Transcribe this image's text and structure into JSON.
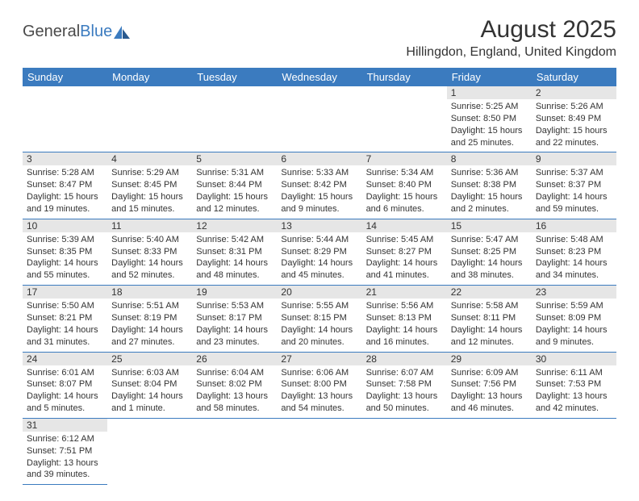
{
  "logo": {
    "general": "General",
    "blue": "Blue"
  },
  "title": "August 2025",
  "location": "Hillingdon, England, United Kingdom",
  "colors": {
    "header_bg": "#3b7bbf",
    "header_fg": "#ffffff",
    "daynum_bg": "#e6e6e6",
    "border": "#3b7bbf"
  },
  "day_headers": [
    "Sunday",
    "Monday",
    "Tuesday",
    "Wednesday",
    "Thursday",
    "Friday",
    "Saturday"
  ],
  "weeks": [
    [
      null,
      null,
      null,
      null,
      null,
      {
        "n": "1",
        "sr": "Sunrise: 5:25 AM",
        "ss": "Sunset: 8:50 PM",
        "dl1": "Daylight: 15 hours",
        "dl2": "and 25 minutes."
      },
      {
        "n": "2",
        "sr": "Sunrise: 5:26 AM",
        "ss": "Sunset: 8:49 PM",
        "dl1": "Daylight: 15 hours",
        "dl2": "and 22 minutes."
      }
    ],
    [
      {
        "n": "3",
        "sr": "Sunrise: 5:28 AM",
        "ss": "Sunset: 8:47 PM",
        "dl1": "Daylight: 15 hours",
        "dl2": "and 19 minutes."
      },
      {
        "n": "4",
        "sr": "Sunrise: 5:29 AM",
        "ss": "Sunset: 8:45 PM",
        "dl1": "Daylight: 15 hours",
        "dl2": "and 15 minutes."
      },
      {
        "n": "5",
        "sr": "Sunrise: 5:31 AM",
        "ss": "Sunset: 8:44 PM",
        "dl1": "Daylight: 15 hours",
        "dl2": "and 12 minutes."
      },
      {
        "n": "6",
        "sr": "Sunrise: 5:33 AM",
        "ss": "Sunset: 8:42 PM",
        "dl1": "Daylight: 15 hours",
        "dl2": "and 9 minutes."
      },
      {
        "n": "7",
        "sr": "Sunrise: 5:34 AM",
        "ss": "Sunset: 8:40 PM",
        "dl1": "Daylight: 15 hours",
        "dl2": "and 6 minutes."
      },
      {
        "n": "8",
        "sr": "Sunrise: 5:36 AM",
        "ss": "Sunset: 8:38 PM",
        "dl1": "Daylight: 15 hours",
        "dl2": "and 2 minutes."
      },
      {
        "n": "9",
        "sr": "Sunrise: 5:37 AM",
        "ss": "Sunset: 8:37 PM",
        "dl1": "Daylight: 14 hours",
        "dl2": "and 59 minutes."
      }
    ],
    [
      {
        "n": "10",
        "sr": "Sunrise: 5:39 AM",
        "ss": "Sunset: 8:35 PM",
        "dl1": "Daylight: 14 hours",
        "dl2": "and 55 minutes."
      },
      {
        "n": "11",
        "sr": "Sunrise: 5:40 AM",
        "ss": "Sunset: 8:33 PM",
        "dl1": "Daylight: 14 hours",
        "dl2": "and 52 minutes."
      },
      {
        "n": "12",
        "sr": "Sunrise: 5:42 AM",
        "ss": "Sunset: 8:31 PM",
        "dl1": "Daylight: 14 hours",
        "dl2": "and 48 minutes."
      },
      {
        "n": "13",
        "sr": "Sunrise: 5:44 AM",
        "ss": "Sunset: 8:29 PM",
        "dl1": "Daylight: 14 hours",
        "dl2": "and 45 minutes."
      },
      {
        "n": "14",
        "sr": "Sunrise: 5:45 AM",
        "ss": "Sunset: 8:27 PM",
        "dl1": "Daylight: 14 hours",
        "dl2": "and 41 minutes."
      },
      {
        "n": "15",
        "sr": "Sunrise: 5:47 AM",
        "ss": "Sunset: 8:25 PM",
        "dl1": "Daylight: 14 hours",
        "dl2": "and 38 minutes."
      },
      {
        "n": "16",
        "sr": "Sunrise: 5:48 AM",
        "ss": "Sunset: 8:23 PM",
        "dl1": "Daylight: 14 hours",
        "dl2": "and 34 minutes."
      }
    ],
    [
      {
        "n": "17",
        "sr": "Sunrise: 5:50 AM",
        "ss": "Sunset: 8:21 PM",
        "dl1": "Daylight: 14 hours",
        "dl2": "and 31 minutes."
      },
      {
        "n": "18",
        "sr": "Sunrise: 5:51 AM",
        "ss": "Sunset: 8:19 PM",
        "dl1": "Daylight: 14 hours",
        "dl2": "and 27 minutes."
      },
      {
        "n": "19",
        "sr": "Sunrise: 5:53 AM",
        "ss": "Sunset: 8:17 PM",
        "dl1": "Daylight: 14 hours",
        "dl2": "and 23 minutes."
      },
      {
        "n": "20",
        "sr": "Sunrise: 5:55 AM",
        "ss": "Sunset: 8:15 PM",
        "dl1": "Daylight: 14 hours",
        "dl2": "and 20 minutes."
      },
      {
        "n": "21",
        "sr": "Sunrise: 5:56 AM",
        "ss": "Sunset: 8:13 PM",
        "dl1": "Daylight: 14 hours",
        "dl2": "and 16 minutes."
      },
      {
        "n": "22",
        "sr": "Sunrise: 5:58 AM",
        "ss": "Sunset: 8:11 PM",
        "dl1": "Daylight: 14 hours",
        "dl2": "and 12 minutes."
      },
      {
        "n": "23",
        "sr": "Sunrise: 5:59 AM",
        "ss": "Sunset: 8:09 PM",
        "dl1": "Daylight: 14 hours",
        "dl2": "and 9 minutes."
      }
    ],
    [
      {
        "n": "24",
        "sr": "Sunrise: 6:01 AM",
        "ss": "Sunset: 8:07 PM",
        "dl1": "Daylight: 14 hours",
        "dl2": "and 5 minutes."
      },
      {
        "n": "25",
        "sr": "Sunrise: 6:03 AM",
        "ss": "Sunset: 8:04 PM",
        "dl1": "Daylight: 14 hours",
        "dl2": "and 1 minute."
      },
      {
        "n": "26",
        "sr": "Sunrise: 6:04 AM",
        "ss": "Sunset: 8:02 PM",
        "dl1": "Daylight: 13 hours",
        "dl2": "and 58 minutes."
      },
      {
        "n": "27",
        "sr": "Sunrise: 6:06 AM",
        "ss": "Sunset: 8:00 PM",
        "dl1": "Daylight: 13 hours",
        "dl2": "and 54 minutes."
      },
      {
        "n": "28",
        "sr": "Sunrise: 6:07 AM",
        "ss": "Sunset: 7:58 PM",
        "dl1": "Daylight: 13 hours",
        "dl2": "and 50 minutes."
      },
      {
        "n": "29",
        "sr": "Sunrise: 6:09 AM",
        "ss": "Sunset: 7:56 PM",
        "dl1": "Daylight: 13 hours",
        "dl2": "and 46 minutes."
      },
      {
        "n": "30",
        "sr": "Sunrise: 6:11 AM",
        "ss": "Sunset: 7:53 PM",
        "dl1": "Daylight: 13 hours",
        "dl2": "and 42 minutes."
      }
    ],
    [
      {
        "n": "31",
        "sr": "Sunrise: 6:12 AM",
        "ss": "Sunset: 7:51 PM",
        "dl1": "Daylight: 13 hours",
        "dl2": "and 39 minutes."
      },
      null,
      null,
      null,
      null,
      null,
      null
    ]
  ]
}
